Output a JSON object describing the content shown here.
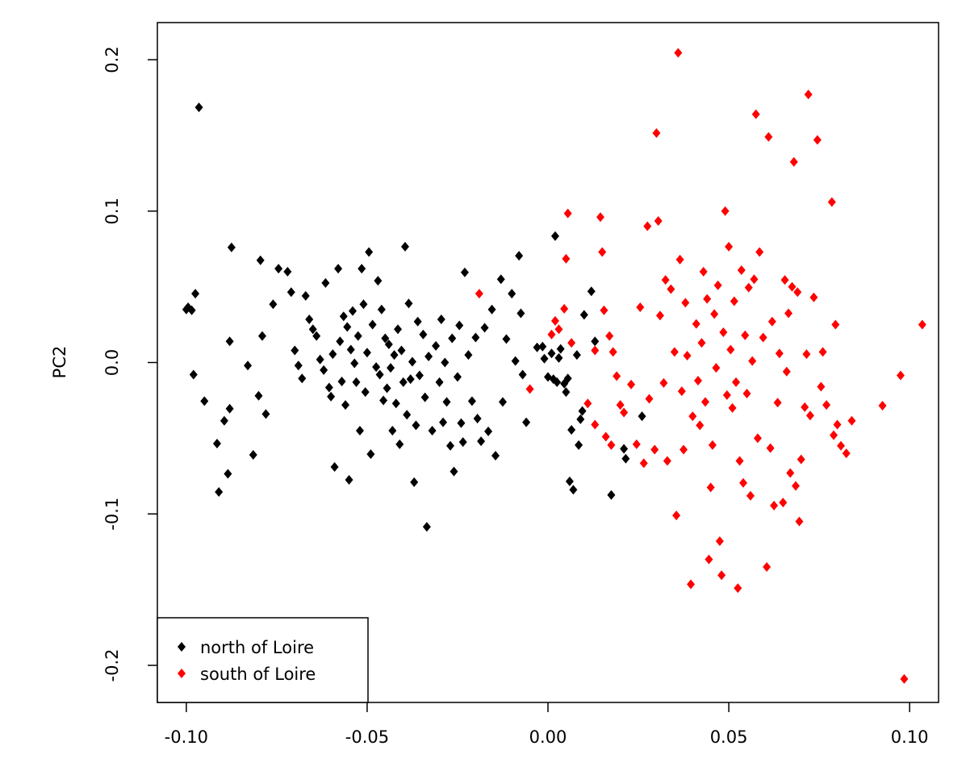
{
  "chart_data": {
    "type": "scatter",
    "title": "",
    "xlabel": "",
    "ylabel": "PC2",
    "xlim": [
      -0.108,
      0.108
    ],
    "ylim": [
      -0.2245,
      0.2245
    ],
    "x_ticks": [
      -0.1,
      -0.05,
      0.0,
      0.05,
      0.1
    ],
    "x_tick_labels": [
      "-0.10",
      "-0.05",
      "0.00",
      "0.05",
      "0.10"
    ],
    "y_ticks": [
      -0.2,
      -0.1,
      0.0,
      0.1,
      0.2
    ],
    "y_tick_labels": [
      "-0.2",
      "-0.1",
      "0.0",
      "0.1",
      "0.2"
    ],
    "grid": false,
    "legend_position": "bottom-left",
    "series": [
      {
        "name": "north of Loire",
        "color": "#000000",
        "points": [
          [
            -0.0965,
            0.1685
          ],
          [
            -0.0995,
            0.0365
          ],
          [
            -0.1,
            0.035
          ],
          [
            -0.0985,
            0.0345
          ],
          [
            -0.0975,
            0.0455
          ],
          [
            -0.098,
            -0.008
          ],
          [
            -0.095,
            -0.0255
          ],
          [
            -0.0915,
            -0.0535
          ],
          [
            -0.091,
            -0.0855
          ],
          [
            -0.0895,
            -0.0385
          ],
          [
            -0.088,
            0.014
          ],
          [
            -0.0875,
            0.076
          ],
          [
            -0.088,
            -0.0305
          ],
          [
            -0.0885,
            -0.0735
          ],
          [
            -0.083,
            -0.002
          ],
          [
            -0.0815,
            -0.061
          ],
          [
            -0.08,
            -0.022
          ],
          [
            -0.0795,
            0.0675
          ],
          [
            -0.079,
            0.0175
          ],
          [
            -0.078,
            -0.034
          ],
          [
            -0.076,
            0.0385
          ],
          [
            -0.0745,
            0.062
          ],
          [
            -0.072,
            0.06
          ],
          [
            -0.071,
            0.0465
          ],
          [
            -0.07,
            0.008
          ],
          [
            -0.069,
            -0.002
          ],
          [
            -0.068,
            -0.0105
          ],
          [
            -0.067,
            0.044
          ],
          [
            -0.066,
            0.0285
          ],
          [
            -0.065,
            0.022
          ],
          [
            -0.064,
            0.0175
          ],
          [
            -0.063,
            0.002
          ],
          [
            -0.062,
            -0.005
          ],
          [
            -0.0615,
            0.0525
          ],
          [
            -0.0605,
            -0.0165
          ],
          [
            -0.06,
            -0.0225
          ],
          [
            -0.0595,
            0.0055
          ],
          [
            -0.059,
            -0.069
          ],
          [
            -0.058,
            0.062
          ],
          [
            -0.0575,
            0.014
          ],
          [
            -0.057,
            -0.0125
          ],
          [
            -0.0565,
            0.0305
          ],
          [
            -0.056,
            -0.028
          ],
          [
            -0.0555,
            0.0235
          ],
          [
            -0.055,
            -0.0775
          ],
          [
            -0.0545,
            0.0085
          ],
          [
            -0.054,
            0.034
          ],
          [
            -0.0535,
            -0.0005
          ],
          [
            -0.053,
            -0.013
          ],
          [
            -0.0525,
            0.0175
          ],
          [
            -0.052,
            -0.045
          ],
          [
            -0.0515,
            0.062
          ],
          [
            -0.051,
            0.0385
          ],
          [
            -0.0505,
            -0.0195
          ],
          [
            -0.05,
            0.0065
          ],
          [
            -0.0495,
            0.073
          ],
          [
            -0.049,
            -0.0605
          ],
          [
            -0.0485,
            0.025
          ],
          [
            -0.0475,
            -0.003
          ],
          [
            -0.047,
            0.054
          ],
          [
            -0.0465,
            -0.008
          ],
          [
            -0.046,
            0.035
          ],
          [
            -0.0455,
            -0.025
          ],
          [
            -0.045,
            0.016
          ],
          [
            -0.0445,
            -0.017
          ],
          [
            -0.044,
            0.012
          ],
          [
            -0.0435,
            -0.0035
          ],
          [
            -0.043,
            -0.045
          ],
          [
            -0.0425,
            0.005
          ],
          [
            -0.042,
            -0.027
          ],
          [
            -0.0415,
            0.022
          ],
          [
            -0.041,
            -0.054
          ],
          [
            -0.0405,
            0.008
          ],
          [
            -0.04,
            -0.013
          ],
          [
            -0.0395,
            0.0765
          ],
          [
            -0.039,
            -0.0345
          ],
          [
            -0.0385,
            0.039
          ],
          [
            -0.038,
            -0.011
          ],
          [
            -0.0375,
            0.0005
          ],
          [
            -0.037,
            -0.079
          ],
          [
            -0.0365,
            -0.0415
          ],
          [
            -0.036,
            0.027
          ],
          [
            -0.0355,
            -0.0085
          ],
          [
            -0.0345,
            0.0185
          ],
          [
            -0.034,
            -0.023
          ],
          [
            -0.0335,
            -0.1085
          ],
          [
            -0.033,
            0.004
          ],
          [
            -0.032,
            -0.045
          ],
          [
            -0.031,
            0.011
          ],
          [
            -0.03,
            -0.013
          ],
          [
            -0.0295,
            0.0285
          ],
          [
            -0.029,
            -0.0395
          ],
          [
            -0.0285,
            0.0
          ],
          [
            -0.028,
            -0.026
          ],
          [
            -0.027,
            -0.055
          ],
          [
            -0.0265,
            0.016
          ],
          [
            -0.026,
            -0.072
          ],
          [
            -0.025,
            -0.0095
          ],
          [
            -0.0245,
            0.0245
          ],
          [
            -0.024,
            -0.04
          ],
          [
            -0.0235,
            -0.0525
          ],
          [
            -0.023,
            0.0595
          ],
          [
            -0.022,
            0.005
          ],
          [
            -0.021,
            -0.0255
          ],
          [
            -0.02,
            0.0165
          ],
          [
            -0.0195,
            -0.037
          ],
          [
            -0.0185,
            -0.052
          ],
          [
            -0.0175,
            0.023
          ],
          [
            -0.0165,
            -0.0455
          ],
          [
            -0.0155,
            0.035
          ],
          [
            -0.0145,
            -0.0615
          ],
          [
            -0.013,
            0.055
          ],
          [
            -0.0125,
            -0.026
          ],
          [
            -0.0115,
            0.0155
          ],
          [
            -0.01,
            0.0455
          ],
          [
            -0.009,
            0.001
          ],
          [
            -0.008,
            0.0705
          ],
          [
            -0.0075,
            0.0325
          ],
          [
            -0.007,
            -0.008
          ],
          [
            -0.006,
            -0.0395
          ],
          [
            -0.003,
            0.01
          ],
          [
            0.002,
            0.0835
          ],
          [
            -0.0015,
            0.0105
          ],
          [
            -0.001,
            0.0025
          ],
          [
            0.0,
            -0.0095
          ],
          [
            0.001,
            0.006
          ],
          [
            0.0015,
            -0.011
          ],
          [
            0.0025,
            -0.013
          ],
          [
            0.003,
            0.003
          ],
          [
            0.0035,
            0.009
          ],
          [
            0.0045,
            -0.014
          ],
          [
            0.005,
            -0.0195
          ],
          [
            0.0055,
            -0.0105
          ],
          [
            0.006,
            -0.0785
          ],
          [
            0.0065,
            -0.0445
          ],
          [
            0.007,
            -0.084
          ],
          [
            0.008,
            0.005
          ],
          [
            0.0085,
            -0.0545
          ],
          [
            0.009,
            -0.0375
          ],
          [
            0.0095,
            -0.032
          ],
          [
            0.01,
            0.0315
          ],
          [
            0.012,
            0.047
          ],
          [
            0.013,
            0.014
          ],
          [
            0.0175,
            -0.0875
          ],
          [
            0.021,
            -0.057
          ],
          [
            0.0215,
            -0.0635
          ],
          [
            0.026,
            -0.0355
          ]
        ]
      },
      {
        "name": "south of Loire",
        "color": "#ff0000",
        "points": [
          [
            -0.019,
            0.0455
          ],
          [
            -0.005,
            -0.0175
          ],
          [
            0.001,
            0.0185
          ],
          [
            0.002,
            0.0275
          ],
          [
            0.003,
            0.022
          ],
          [
            0.0045,
            0.0355
          ],
          [
            0.005,
            0.0685
          ],
          [
            0.0055,
            0.0985
          ],
          [
            0.0065,
            0.013
          ],
          [
            0.011,
            -0.027
          ],
          [
            0.013,
            -0.041
          ],
          [
            0.013,
            0.008
          ],
          [
            0.0145,
            0.096
          ],
          [
            0.015,
            0.073
          ],
          [
            0.0155,
            0.0345
          ],
          [
            0.016,
            -0.049
          ],
          [
            0.0175,
            -0.0545
          ],
          [
            0.017,
            0.0175
          ],
          [
            0.018,
            0.007
          ],
          [
            0.019,
            -0.009
          ],
          [
            0.02,
            -0.028
          ],
          [
            0.021,
            -0.033
          ],
          [
            0.023,
            -0.0145
          ],
          [
            0.0245,
            -0.054
          ],
          [
            0.0255,
            0.0365
          ],
          [
            0.0265,
            -0.0665
          ],
          [
            0.0275,
            0.09
          ],
          [
            0.028,
            -0.024
          ],
          [
            0.0295,
            -0.0575
          ],
          [
            0.03,
            0.1515
          ],
          [
            0.0305,
            0.0935
          ],
          [
            0.031,
            0.031
          ],
          [
            0.032,
            -0.0135
          ],
          [
            0.0325,
            0.0545
          ],
          [
            0.033,
            -0.065
          ],
          [
            0.034,
            0.0485
          ],
          [
            0.035,
            0.007
          ],
          [
            0.0355,
            -0.101
          ],
          [
            0.036,
            0.2045
          ],
          [
            0.0365,
            0.068
          ],
          [
            0.037,
            -0.019
          ],
          [
            0.0375,
            -0.0575
          ],
          [
            0.038,
            0.0395
          ],
          [
            0.0385,
            0.0045
          ],
          [
            0.0395,
            -0.1465
          ],
          [
            0.04,
            -0.0355
          ],
          [
            0.041,
            0.0255
          ],
          [
            0.0415,
            -0.012
          ],
          [
            0.042,
            -0.0415
          ],
          [
            0.0425,
            0.013
          ],
          [
            0.043,
            0.06
          ],
          [
            0.0435,
            -0.026
          ],
          [
            0.044,
            0.042
          ],
          [
            0.0445,
            -0.13
          ],
          [
            0.045,
            -0.0825
          ],
          [
            0.0455,
            -0.0545
          ],
          [
            0.046,
            0.032
          ],
          [
            0.0465,
            -0.0035
          ],
          [
            0.047,
            0.051
          ],
          [
            0.0475,
            -0.118
          ],
          [
            0.048,
            -0.1405
          ],
          [
            0.0485,
            0.02
          ],
          [
            0.049,
            0.1
          ],
          [
            0.0495,
            -0.0215
          ],
          [
            0.05,
            0.0765
          ],
          [
            0.0505,
            0.0085
          ],
          [
            0.051,
            -0.03
          ],
          [
            0.0515,
            0.0405
          ],
          [
            0.052,
            -0.013
          ],
          [
            0.0525,
            -0.149
          ],
          [
            0.053,
            -0.065
          ],
          [
            0.0535,
            0.061
          ],
          [
            0.054,
            -0.0795
          ],
          [
            0.0545,
            0.018
          ],
          [
            0.055,
            -0.0205
          ],
          [
            0.0555,
            0.0495
          ],
          [
            0.056,
            -0.088
          ],
          [
            0.0565,
            0.001
          ],
          [
            0.057,
            0.055
          ],
          [
            0.0575,
            0.164
          ],
          [
            0.058,
            -0.05
          ],
          [
            0.0585,
            0.073
          ],
          [
            0.0595,
            0.0165
          ],
          [
            0.0605,
            -0.135
          ],
          [
            0.061,
            0.149
          ],
          [
            0.0615,
            -0.0565
          ],
          [
            0.062,
            0.027
          ],
          [
            0.0625,
            -0.0945
          ],
          [
            0.0635,
            -0.0265
          ],
          [
            0.064,
            0.006
          ],
          [
            0.065,
            -0.0925
          ],
          [
            0.0655,
            0.0545
          ],
          [
            0.066,
            -0.006
          ],
          [
            0.0665,
            0.0325
          ],
          [
            0.067,
            -0.073
          ],
          [
            0.0675,
            0.05
          ],
          [
            0.068,
            0.1325
          ],
          [
            0.0685,
            -0.0815
          ],
          [
            0.069,
            0.0465
          ],
          [
            0.0695,
            -0.105
          ],
          [
            0.07,
            -0.064
          ],
          [
            0.071,
            -0.0295
          ],
          [
            0.0715,
            0.0055
          ],
          [
            0.072,
            0.177
          ],
          [
            0.0725,
            -0.035
          ],
          [
            0.0735,
            0.043
          ],
          [
            0.0745,
            0.147
          ],
          [
            0.0755,
            -0.016
          ],
          [
            0.076,
            0.007
          ],
          [
            0.077,
            -0.028
          ],
          [
            0.0785,
            0.106
          ],
          [
            0.079,
            -0.048
          ],
          [
            0.0795,
            0.025
          ],
          [
            0.08,
            -0.041
          ],
          [
            0.081,
            -0.055
          ],
          [
            0.0825,
            -0.06
          ],
          [
            0.084,
            -0.0385
          ],
          [
            0.0925,
            -0.0285
          ],
          [
            0.0975,
            -0.0085
          ],
          [
            0.0985,
            -0.209
          ],
          [
            0.1035,
            0.025
          ]
        ]
      }
    ]
  }
}
